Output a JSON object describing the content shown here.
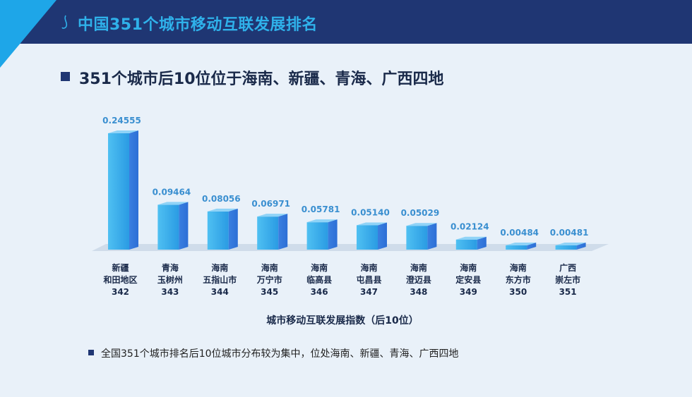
{
  "header": {
    "title": "中国351个城市移动互联发展排名"
  },
  "subtitle": "351个城市后10位位于海南、新疆、青海、广西四地",
  "note": "全国351个城市排名后10位城市分布较为集中，位处海南、新疆、青海、广西四地",
  "colors": {
    "header_bg": "#1f3673",
    "accent": "#1ea6e8",
    "title_text": "#2fb1ea",
    "bar_front": "#2a9be3",
    "bar_side": "#3a7fe0",
    "bar_top": "#8fd3f7",
    "value_label": "#3a8fd0"
  },
  "chart_data": {
    "type": "bar",
    "xlabel": "城市移动互联发展指数（后10位）",
    "ylim": [
      0,
      0.25
    ],
    "categories": [
      {
        "region": "新疆",
        "city": "和田地区",
        "rank": "342"
      },
      {
        "region": "青海",
        "city": "玉树州",
        "rank": "343"
      },
      {
        "region": "海南",
        "city": "五指山市",
        "rank": "344"
      },
      {
        "region": "海南",
        "city": "万宁市",
        "rank": "345"
      },
      {
        "region": "海南",
        "city": "临高县",
        "rank": "346"
      },
      {
        "region": "海南",
        "city": "屯昌县",
        "rank": "347"
      },
      {
        "region": "海南",
        "city": "澄迈县",
        "rank": "348"
      },
      {
        "region": "海南",
        "city": "定安县",
        "rank": "349"
      },
      {
        "region": "海南",
        "city": "东方市",
        "rank": "350"
      },
      {
        "region": "广西",
        "city": "崇左市",
        "rank": "351"
      }
    ],
    "values": [
      0.24555,
      0.09464,
      0.08056,
      0.06971,
      0.05781,
      0.0514,
      0.05029,
      0.02124,
      0.00484,
      0.00481
    ],
    "value_labels": [
      "0.24555",
      "0.09464",
      "0.08056",
      "0.06971",
      "0.05781",
      "0.05140",
      "0.05029",
      "0.02124",
      "0.00484",
      "0.00481"
    ]
  }
}
